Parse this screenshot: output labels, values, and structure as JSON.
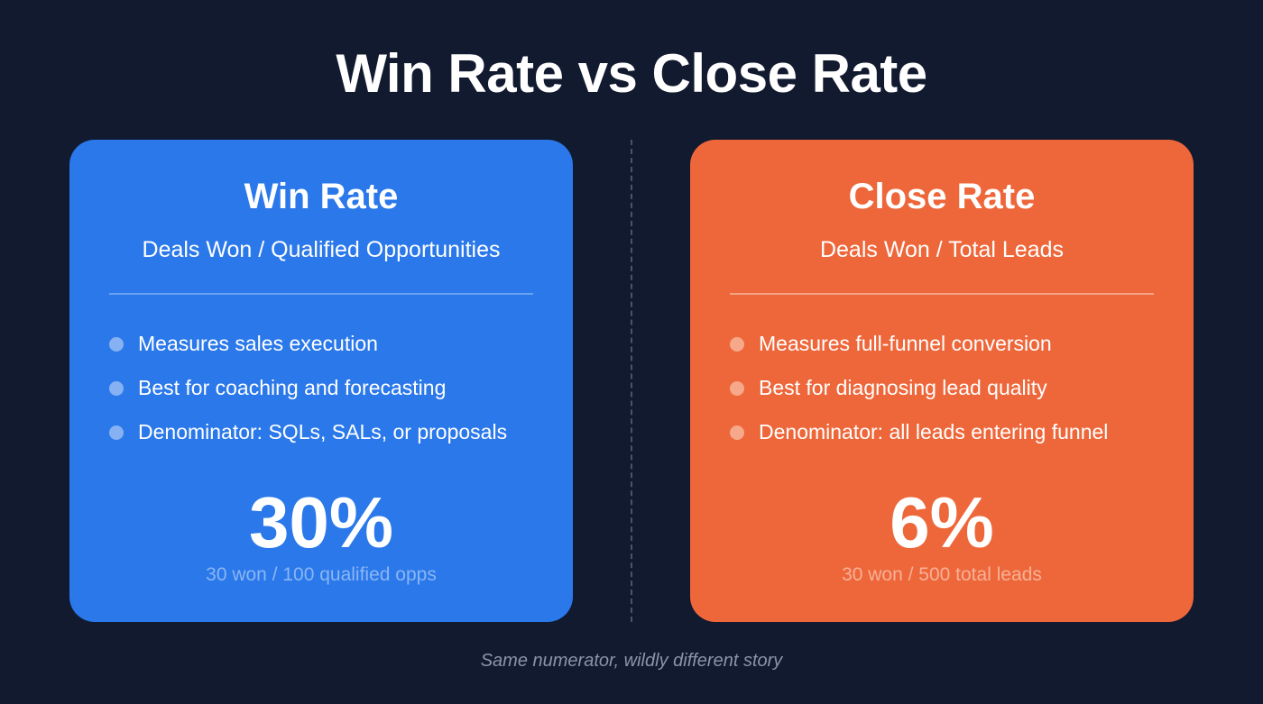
{
  "title": "Win Rate vs Close Rate",
  "colors": {
    "background": "#121a30",
    "win_rate": "#2a78ea",
    "close_rate": "#ee673a"
  },
  "cards": [
    {
      "title": "Win Rate",
      "formula": "Deals Won / Qualified Opportunities",
      "bullets": [
        "Measures sales execution",
        "Best for coaching and forecasting",
        "Denominator: SQLs, SALs, or proposals"
      ],
      "value": "30%",
      "caption": "30 won / 100 qualified opps"
    },
    {
      "title": "Close Rate",
      "formula": "Deals Won / Total Leads",
      "bullets": [
        "Measures full-funnel conversion",
        "Best for diagnosing lead quality",
        "Denominator: all leads entering funnel"
      ],
      "value": "6%",
      "caption": "30 won / 500 total leads"
    }
  ],
  "footer": "Same numerator, wildly different story"
}
